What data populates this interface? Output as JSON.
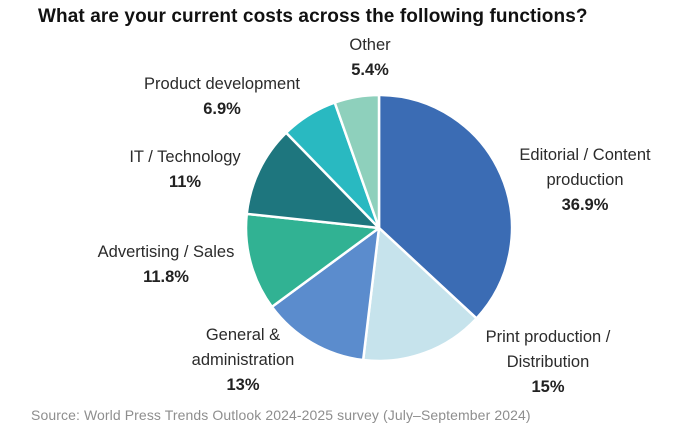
{
  "title": "What are your current costs across the following functions?",
  "source": "Source: World Press Trends Outlook 2024-2025 survey (July–September 2024)",
  "chart_data": {
    "type": "pie",
    "title": "What are your current costs across the following functions?",
    "direction": "clockwise",
    "start_angle": "12 o'clock",
    "legend_position": "labels around pie",
    "slices": [
      {
        "label": "Editorial / Content production",
        "pct_label": "36.9%",
        "value": 36.9,
        "color": "#3b6cb4"
      },
      {
        "label": "Print production / Distribution",
        "pct_label": "15%",
        "value": 15,
        "color": "#c6e3ec"
      },
      {
        "label": "General & administration",
        "pct_label": "13%",
        "value": 13,
        "color": "#5b8ccd"
      },
      {
        "label": "Advertising / Sales",
        "pct_label": "11.8%",
        "value": 11.8,
        "color": "#31b293"
      },
      {
        "label": "IT / Technology",
        "pct_label": "11%",
        "value": 11,
        "color": "#1e767e"
      },
      {
        "label": "Product development",
        "pct_label": "6.9%",
        "value": 6.9,
        "color": "#29b9c1"
      },
      {
        "label": "Other",
        "pct_label": "5.4%",
        "value": 5.4,
        "color": "#8ed0bc"
      }
    ]
  }
}
